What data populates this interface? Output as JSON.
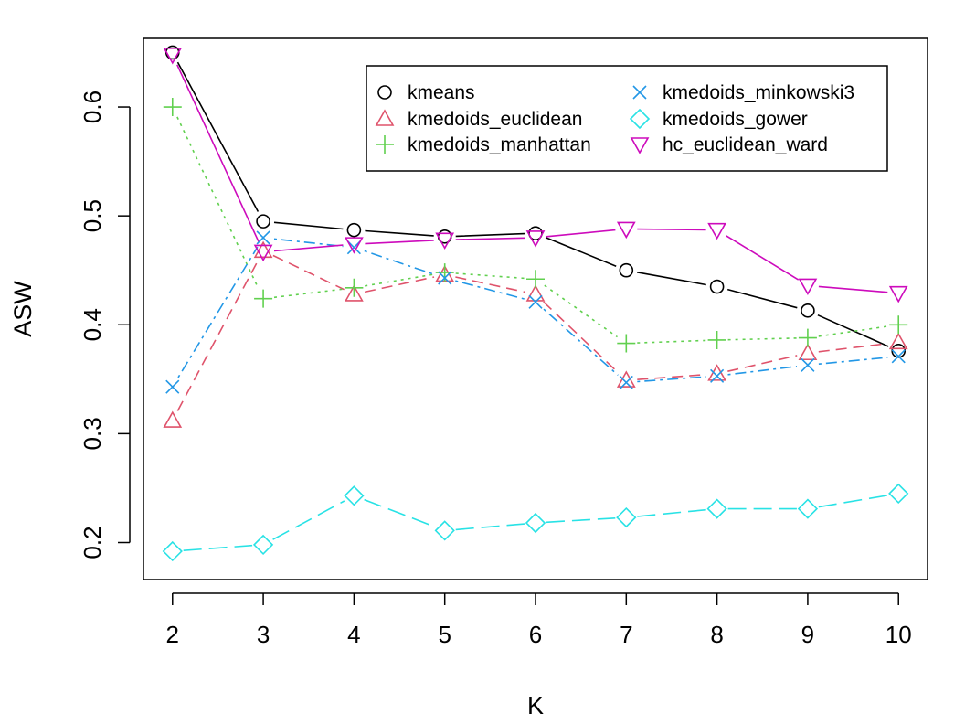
{
  "chart_data": {
    "type": "line",
    "xlabel": "K",
    "ylabel": "ASW",
    "x": [
      2,
      3,
      4,
      5,
      6,
      7,
      8,
      9,
      10
    ],
    "xlim": [
      1.68,
      10.32
    ],
    "ylim": [
      0.166,
      0.663
    ],
    "xticks": [
      "2",
      "3",
      "4",
      "5",
      "6",
      "7",
      "8",
      "9",
      "10"
    ],
    "yticks": [
      "0.2",
      "0.3",
      "0.4",
      "0.5",
      "0.6"
    ],
    "grid": false,
    "legend_position": "top-right",
    "series": [
      {
        "name": "kmeans",
        "color": "#000000",
        "marker": "circle",
        "dash": "",
        "values": [
          0.65,
          0.495,
          0.487,
          0.481,
          0.484,
          0.45,
          0.435,
          0.413,
          0.376
        ]
      },
      {
        "name": "kmedoids_euclidean",
        "color": "#DF536B",
        "marker": "triangle-up",
        "dash": "12 7",
        "values": [
          0.312,
          0.468,
          0.428,
          0.446,
          0.428,
          0.349,
          0.355,
          0.374,
          0.384
        ]
      },
      {
        "name": "kmedoids_manhattan",
        "color": "#61D04F",
        "marker": "plus",
        "dash": "3 5",
        "values": [
          0.6,
          0.424,
          0.434,
          0.448,
          0.442,
          0.383,
          0.386,
          0.388,
          0.4
        ]
      },
      {
        "name": "kmedoids_minkowski3",
        "color": "#2297E6",
        "marker": "cross",
        "dash": "3 5 12 5",
        "values": [
          0.343,
          0.48,
          0.471,
          0.443,
          0.421,
          0.347,
          0.353,
          0.363,
          0.371
        ]
      },
      {
        "name": "kmedoids_gower",
        "color": "#28E2E5",
        "marker": "diamond",
        "dash": "20 8",
        "values": [
          0.192,
          0.198,
          0.243,
          0.211,
          0.218,
          0.223,
          0.231,
          0.231,
          0.245
        ]
      },
      {
        "name": "hc_euclidean_ward",
        "color": "#CD0BBC",
        "marker": "triangle-down",
        "dash": "",
        "values": [
          0.648,
          0.467,
          0.474,
          0.478,
          0.48,
          0.488,
          0.487,
          0.436,
          0.429
        ]
      }
    ]
  }
}
